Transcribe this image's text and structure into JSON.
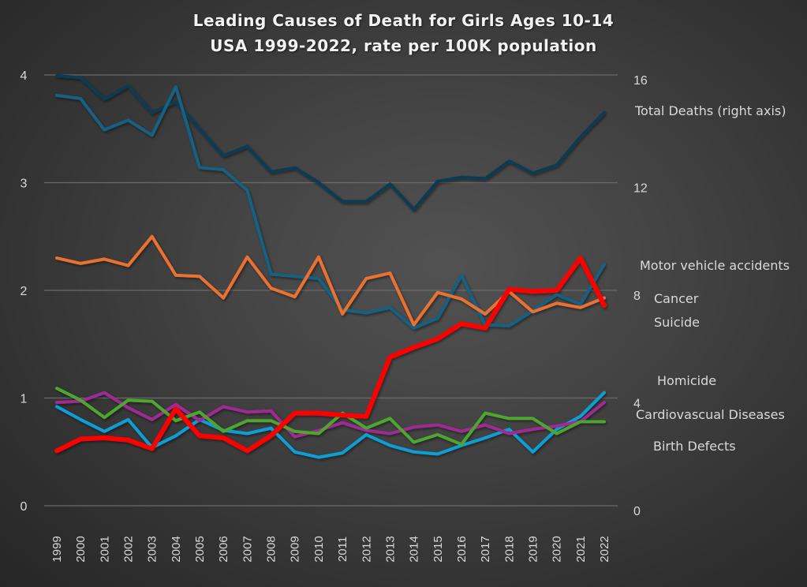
{
  "chart_data": {
    "type": "line",
    "title": "Leading Causes of Death for Girls Ages 10-14",
    "subtitle": "USA 1999-2022, rate per 100K population",
    "xlabel": "",
    "ylabel": "",
    "y2label": "",
    "grid": true,
    "legend": "inline-right",
    "x": [
      "1999",
      "2000",
      "2001",
      "2002",
      "2003",
      "2004",
      "2005",
      "2006",
      "2007",
      "2008",
      "2009",
      "2010",
      "2011",
      "2012",
      "2013",
      "2014",
      "2015",
      "2016",
      "2017",
      "2018",
      "2019",
      "2020",
      "2021",
      "2022"
    ],
    "ylim": [
      0,
      4
    ],
    "yticks": [
      0,
      1,
      2,
      3,
      4
    ],
    "y2lim": [
      0,
      16
    ],
    "y2ticks": [
      0,
      4,
      8,
      12,
      16
    ],
    "series": [
      {
        "name": "Total Deaths (right axis)",
        "axis": "right",
        "color": "#0E3A52",
        "values": [
          15.97,
          15.9,
          15.1,
          15.6,
          14.6,
          15.0,
          14.0,
          13.0,
          13.35,
          12.4,
          12.55,
          12.0,
          11.3,
          11.3,
          11.95,
          11.0,
          12.05,
          12.2,
          12.15,
          12.8,
          12.35,
          12.65,
          13.7,
          14.6
        ]
      },
      {
        "name": "Motor vehicle accidents",
        "axis": "left",
        "color": "#156082",
        "values": [
          3.81,
          3.78,
          3.49,
          3.58,
          3.44,
          3.89,
          3.14,
          3.12,
          2.93,
          2.15,
          2.13,
          2.11,
          1.82,
          1.79,
          1.84,
          1.65,
          1.74,
          2.14,
          1.68,
          1.67,
          1.81,
          1.96,
          1.87,
          2.24
        ]
      },
      {
        "name": "Cancer",
        "axis": "left",
        "color": "#E97132",
        "values": [
          2.3,
          2.25,
          2.29,
          2.23,
          2.5,
          2.14,
          2.13,
          1.93,
          2.31,
          2.02,
          1.94,
          2.31,
          1.78,
          2.11,
          2.16,
          1.68,
          1.98,
          1.92,
          1.78,
          1.99,
          1.8,
          1.88,
          1.84,
          1.93
        ]
      },
      {
        "name": "Suicide",
        "axis": "left",
        "color": "#FF0000",
        "values": [
          0.51,
          0.62,
          0.63,
          0.61,
          0.53,
          0.9,
          0.65,
          0.63,
          0.51,
          0.65,
          0.86,
          0.86,
          0.84,
          0.83,
          1.38,
          1.47,
          1.55,
          1.69,
          1.65,
          2.01,
          1.99,
          2.0,
          2.3,
          1.86
        ]
      },
      {
        "name": "Homicide",
        "axis": "left",
        "color": "#0F9ED5",
        "values": [
          0.92,
          0.8,
          0.69,
          0.8,
          0.54,
          0.65,
          0.8,
          0.7,
          0.67,
          0.72,
          0.5,
          0.45,
          0.49,
          0.66,
          0.56,
          0.5,
          0.48,
          0.56,
          0.63,
          0.71,
          0.5,
          0.71,
          0.83,
          1.05
        ]
      },
      {
        "name": "Cardiovascual Diseases",
        "axis": "left",
        "color": "#A02B93",
        "values": [
          0.96,
          0.97,
          1.05,
          0.91,
          0.8,
          0.94,
          0.79,
          0.92,
          0.87,
          0.88,
          0.64,
          0.7,
          0.77,
          0.7,
          0.67,
          0.73,
          0.75,
          0.69,
          0.75,
          0.67,
          0.71,
          0.74,
          0.78,
          0.96
        ]
      },
      {
        "name": "Birth Defects",
        "axis": "left",
        "color": "#4EA72E",
        "values": [
          1.09,
          0.98,
          0.82,
          0.98,
          0.97,
          0.79,
          0.87,
          0.69,
          0.79,
          0.79,
          0.69,
          0.67,
          0.86,
          0.72,
          0.81,
          0.59,
          0.66,
          0.57,
          0.86,
          0.81,
          0.81,
          0.67,
          0.78,
          0.78
        ]
      }
    ],
    "annotations": [
      "Total Deaths (right axis)",
      "Motor vehicle accidents",
      "Cancer",
      "Suicide",
      "Homicide",
      "Cardiovascual Diseases",
      "Birth Defects"
    ]
  }
}
